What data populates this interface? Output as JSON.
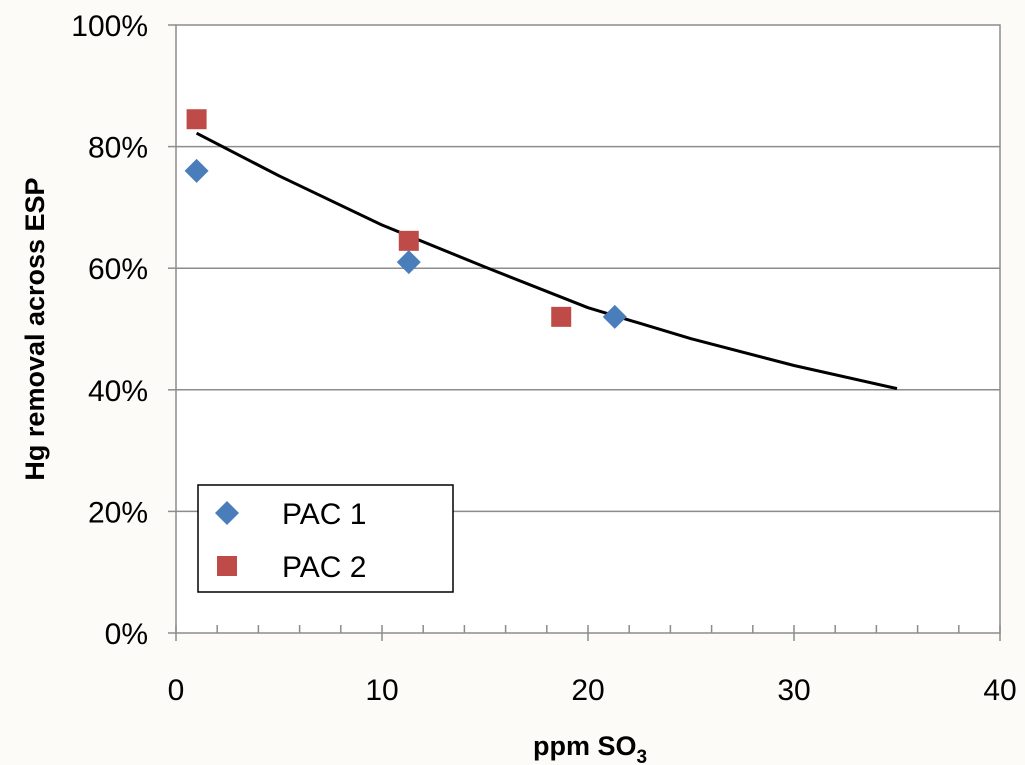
{
  "chart_data": {
    "type": "scatter",
    "xlabel": "ppm SO",
    "xlabel_subscript": "3",
    "ylabel": "Hg removal across ESP",
    "xlim": [
      0,
      40
    ],
    "ylim": [
      0,
      1
    ],
    "x_ticks": [
      0,
      10,
      20,
      30,
      40
    ],
    "x_tick_labels": [
      "0",
      "10",
      "20",
      "30",
      "40"
    ],
    "y_ticks": [
      0,
      0.2,
      0.4,
      0.6,
      0.8,
      1.0
    ],
    "y_tick_labels": [
      "0%",
      "20%",
      "40%",
      "60%",
      "80%",
      "100%"
    ],
    "x_minor_step": 2,
    "grid": "horizontal",
    "legend_position": "bottom-left",
    "series": [
      {
        "name": "PAC 1",
        "marker": "diamond",
        "color": "#4a7ebb",
        "x": [
          1.0,
          11.3,
          21.3
        ],
        "y": [
          0.76,
          0.61,
          0.52
        ]
      },
      {
        "name": "PAC 2",
        "marker": "square",
        "color": "#be4b48",
        "x": [
          1.0,
          11.3,
          18.7
        ],
        "y": [
          0.845,
          0.645,
          0.52
        ]
      }
    ],
    "trendline": {
      "type": "curve",
      "color": "#000000",
      "x": [
        1,
        5,
        10,
        15,
        20,
        25,
        30,
        35
      ],
      "y": [
        0.822,
        0.752,
        0.671,
        0.602,
        0.535,
        0.484,
        0.44,
        0.402
      ]
    }
  }
}
